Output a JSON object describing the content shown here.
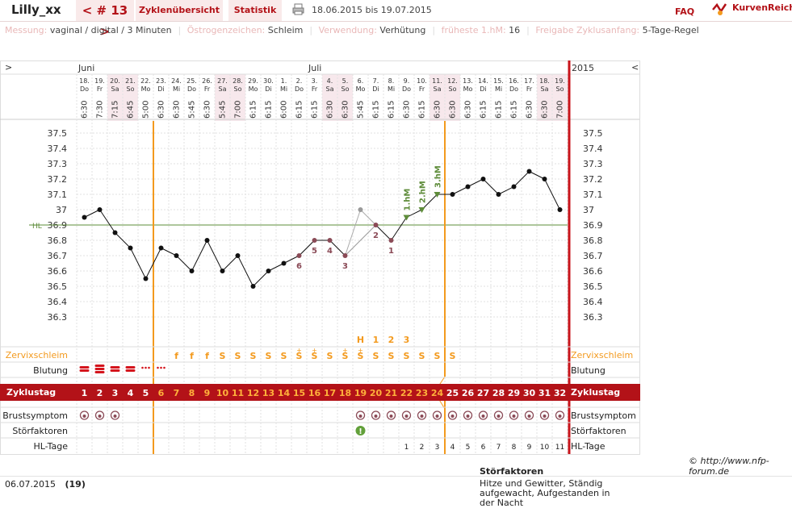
{
  "header": {
    "user": "Lilly_xx",
    "cycle_label": "< # 13 >",
    "tabs": [
      "Zyklenübersicht",
      "Statistik"
    ],
    "period": "18.06.2015 bis 19.07.2015",
    "faq": "FAQ",
    "brand": "KurvenReich",
    "print_icon": "printer-icon",
    "brand_icon": "curve-logo-icon"
  },
  "info": [
    {
      "key": "Messung:",
      "value": "vaginal / digital / 3 Minuten"
    },
    {
      "key": "Östrogenzeichen:",
      "value": "Schleim"
    },
    {
      "key": "Verwendung:",
      "value": "Verhütung"
    },
    {
      "key": "früheste 1.hM:",
      "value": "16"
    },
    {
      "key": "Freigabe Zyklusanfang:",
      "value": "5-Tage-Regel"
    }
  ],
  "chart_data": {
    "type": "line",
    "nav_left": ">",
    "nav_right": "<",
    "year": "2015",
    "months": [
      {
        "label": "Juni",
        "start_index": 0
      },
      {
        "label": "Juli",
        "start_index": 13
      }
    ],
    "days": [
      {
        "date": "18.",
        "wd": "Do",
        "time": "6:30",
        "cycle_day": "1",
        "temp": 36.95,
        "mucus": "",
        "bleeding": "heavy",
        "breast": true,
        "hl": ""
      },
      {
        "date": "19.",
        "wd": "Fr",
        "time": "7:30",
        "cycle_day": "2",
        "temp": 37.0,
        "mucus": "",
        "bleeding": "heavy3",
        "breast": true,
        "hl": ""
      },
      {
        "date": "20.",
        "wd": "Sa",
        "time": "7:15",
        "cycle_day": "3",
        "temp": 36.85,
        "mucus": "",
        "bleeding": "heavy",
        "breast": true,
        "hl": ""
      },
      {
        "date": "21.",
        "wd": "So",
        "time": "6:45",
        "cycle_day": "4",
        "temp": 36.75,
        "mucus": "",
        "bleeding": "heavy",
        "breast": false,
        "hl": ""
      },
      {
        "date": "22.",
        "wd": "Mo",
        "time": "5:00",
        "cycle_day": "5",
        "temp": 36.55,
        "mucus": "",
        "bleeding": "light",
        "breast": false,
        "hl": ""
      },
      {
        "date": "23.",
        "wd": "Di",
        "time": "6:30",
        "cycle_day": "6",
        "temp": 36.75,
        "mucus": "",
        "bleeding": "light",
        "breast": false,
        "hl": ""
      },
      {
        "date": "24.",
        "wd": "Mi",
        "time": "6:30",
        "cycle_day": "7",
        "temp": 36.7,
        "mucus": "f",
        "bleeding": "",
        "breast": false,
        "hl": ""
      },
      {
        "date": "25.",
        "wd": "Do",
        "time": "5:45",
        "cycle_day": "8",
        "temp": 36.6,
        "mucus": "f",
        "bleeding": "",
        "breast": false,
        "hl": ""
      },
      {
        "date": "26.",
        "wd": "Fr",
        "time": "6:30",
        "cycle_day": "9",
        "temp": 36.8,
        "mucus": "f",
        "bleeding": "",
        "breast": false,
        "hl": ""
      },
      {
        "date": "27.",
        "wd": "Sa",
        "time": "5:45",
        "cycle_day": "10",
        "temp": 36.6,
        "mucus": "S",
        "bleeding": "",
        "breast": false,
        "hl": ""
      },
      {
        "date": "28.",
        "wd": "So",
        "time": "7:00",
        "cycle_day": "11",
        "temp": 36.7,
        "mucus": "S",
        "bleeding": "",
        "breast": false,
        "hl": ""
      },
      {
        "date": "29.",
        "wd": "Mo",
        "time": "6:15",
        "cycle_day": "12",
        "temp": 36.5,
        "mucus": "S",
        "bleeding": "",
        "breast": false,
        "hl": ""
      },
      {
        "date": "30.",
        "wd": "Di",
        "time": "6:15",
        "cycle_day": "13",
        "temp": 36.6,
        "mucus": "S",
        "bleeding": "",
        "breast": false,
        "hl": ""
      },
      {
        "date": "1.",
        "wd": "Mi",
        "time": "6:00",
        "cycle_day": "14",
        "temp": 36.65,
        "mucus": "S",
        "bleeding": "",
        "breast": false,
        "hl": ""
      },
      {
        "date": "2.",
        "wd": "Do",
        "time": "6:15",
        "cycle_day": "15",
        "temp": 36.7,
        "mucus": "S+",
        "bleeding": "",
        "breast": false,
        "hl": ""
      },
      {
        "date": "3.",
        "wd": "Fr",
        "time": "6:15",
        "cycle_day": "16",
        "temp": 36.8,
        "mucus": "S+",
        "bleeding": "",
        "breast": false,
        "hl": ""
      },
      {
        "date": "4.",
        "wd": "Sa",
        "time": "6:30",
        "cycle_day": "17",
        "temp": 36.8,
        "mucus": "S",
        "bleeding": "",
        "breast": false,
        "hl": ""
      },
      {
        "date": "5.",
        "wd": "So",
        "time": "6:30",
        "cycle_day": "18",
        "temp": 36.7,
        "mucus": "S+",
        "bleeding": "",
        "breast": false,
        "hl": ""
      },
      {
        "date": "6.",
        "wd": "Mo",
        "time": "5:45",
        "cycle_day": "19",
        "temp": 37.0,
        "mucus": "S+",
        "bleeding": "",
        "breast": true,
        "hl": ""
      },
      {
        "date": "7.",
        "wd": "Di",
        "time": "6:15",
        "cycle_day": "20",
        "temp": 36.9,
        "mucus": "S",
        "bleeding": "",
        "breast": true,
        "hl": ""
      },
      {
        "date": "8.",
        "wd": "Mi",
        "time": "6:15",
        "cycle_day": "21",
        "temp": 36.8,
        "mucus": "S",
        "bleeding": "",
        "breast": true,
        "hl": ""
      },
      {
        "date": "9.",
        "wd": "Do",
        "time": "6:30",
        "cycle_day": "22",
        "temp": 36.95,
        "mucus": "S",
        "bleeding": "",
        "breast": true,
        "hl": "1"
      },
      {
        "date": "10.",
        "wd": "Fr",
        "time": "6:15",
        "cycle_day": "23",
        "temp": 37.0,
        "mucus": "S",
        "bleeding": "",
        "breast": true,
        "hl": "2"
      },
      {
        "date": "11.",
        "wd": "Sa",
        "time": "6:30",
        "cycle_day": "24",
        "temp": 37.1,
        "mucus": "S",
        "bleeding": "",
        "breast": true,
        "hl": "3"
      },
      {
        "date": "12.",
        "wd": "So",
        "time": "6:30",
        "cycle_day": "25",
        "temp": 37.1,
        "mucus": "S",
        "bleeding": "",
        "breast": true,
        "hl": "4"
      },
      {
        "date": "13.",
        "wd": "Mo",
        "time": "6:30",
        "cycle_day": "26",
        "temp": 37.15,
        "mucus": "",
        "bleeding": "",
        "breast": true,
        "hl": "5"
      },
      {
        "date": "14.",
        "wd": "Di",
        "time": "6:15",
        "cycle_day": "27",
        "temp": 37.2,
        "mucus": "",
        "bleeding": "",
        "breast": true,
        "hl": "6"
      },
      {
        "date": "15.",
        "wd": "Mi",
        "time": "6:15",
        "cycle_day": "28",
        "temp": 37.1,
        "mucus": "",
        "bleeding": "",
        "breast": true,
        "hl": "7"
      },
      {
        "date": "16.",
        "wd": "Do",
        "time": "6:15",
        "cycle_day": "29",
        "temp": 37.15,
        "mucus": "",
        "bleeding": "",
        "breast": true,
        "hl": "8"
      },
      {
        "date": "17.",
        "wd": "Fr",
        "time": "6:30",
        "cycle_day": "30",
        "temp": 37.25,
        "mucus": "",
        "bleeding": "",
        "breast": true,
        "hl": "9"
      },
      {
        "date": "18.",
        "wd": "Sa",
        "time": "6:30",
        "cycle_day": "31",
        "temp": 37.2,
        "mucus": "",
        "bleeding": "",
        "breast": true,
        "hl": "10"
      },
      {
        "date": "19.",
        "wd": "So",
        "time": "7:00",
        "cycle_day": "32",
        "temp": 37.0,
        "mucus": "",
        "bleeding": "",
        "breast": true,
        "hl": "11"
      }
    ],
    "excluded_days": [
      18
    ],
    "storfaktor_day_index": 18,
    "y_ticks": [
      37.5,
      37.4,
      37.3,
      37.2,
      37.1,
      37.0,
      36.9,
      36.8,
      36.7,
      36.6,
      36.5,
      36.4,
      36.3
    ],
    "y_tick_labels": [
      "37.5",
      "37.4",
      "37.3",
      "37.2",
      "37.1",
      "37",
      "36.9",
      "36.8",
      "36.7",
      "36.6",
      "36.5",
      "36.4",
      "36.3"
    ],
    "ylim": [
      36.2,
      37.6
    ],
    "coverline": {
      "label": "HL",
      "value": 36.9
    },
    "low_labels": [
      {
        "day_index": 14,
        "label": "6"
      },
      {
        "day_index": 15,
        "label": "5"
      },
      {
        "day_index": 16,
        "label": "4"
      },
      {
        "day_index": 17,
        "label": "3"
      },
      {
        "day_index": 19,
        "label": "2"
      },
      {
        "day_index": 20,
        "label": "1"
      }
    ],
    "high_labels": [
      {
        "day_index": 21,
        "label": "1.hM"
      },
      {
        "day_index": 22,
        "label": "2.hM"
      },
      {
        "day_index": 23,
        "label": "3.hM"
      }
    ],
    "mucus_peak": [
      {
        "day_index": 18,
        "label": "H"
      },
      {
        "day_index": 19,
        "label": "1"
      },
      {
        "day_index": 20,
        "label": "2"
      },
      {
        "day_index": 21,
        "label": "3"
      }
    ],
    "rows": {
      "mucus": "Zervixschleim",
      "bleeding": "Blutung",
      "cycle": "Zyklustag",
      "breast": "Brustsymptom",
      "storfaktoren": "Störfaktoren",
      "hl_days": "HL-Tage"
    },
    "fertile_start_index": 5,
    "fertile_end_index": 23,
    "colors": {
      "accent": "#b31218",
      "orange": "#f39a1e",
      "green": "#5e8c3a",
      "low": "#8a4a56",
      "weekend": "#f7e8ec"
    }
  },
  "footer": {
    "date": "06.07.2015",
    "day": "(19)",
    "storfaktoren_heading": "Störfaktoren",
    "storfaktoren_text": "Hitze und Gewitter, Ständig aufgewacht, Aufgestanden in der Nacht",
    "copyright": "© http://www.nfp-forum.de"
  }
}
